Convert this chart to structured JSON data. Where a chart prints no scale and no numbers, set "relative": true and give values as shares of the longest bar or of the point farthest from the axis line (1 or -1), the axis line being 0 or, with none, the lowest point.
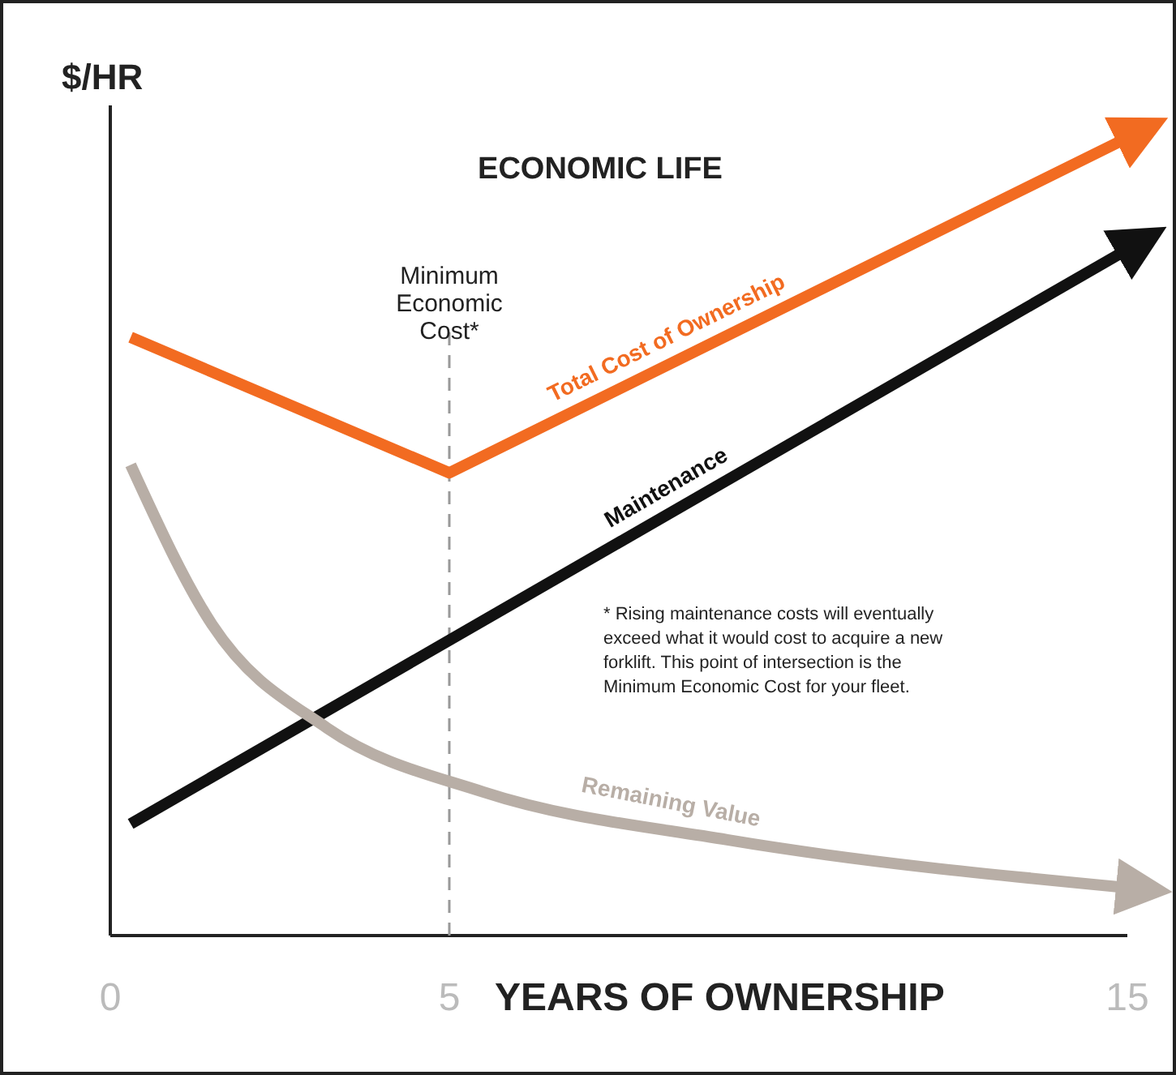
{
  "chart_data": {
    "type": "line",
    "relative": true,
    "title": "ECONOMIC LIFE",
    "ylabel": "$/HR",
    "xlabel": "YEARS OF OWNERSHIP",
    "xlim": [
      0,
      15
    ],
    "xticks": [
      0,
      5,
      15
    ],
    "marker": "none",
    "line_style": "solid",
    "grid": false,
    "legend": false,
    "series": [
      {
        "name": "Total Cost of Ownership",
        "color": "#f26b21",
        "x": [
          0.3,
          5,
          15
        ],
        "values": [
          0.75,
          0.58,
          1
        ]
      },
      {
        "name": "Maintenance",
        "color": "#111111",
        "x": [
          0.3,
          15
        ],
        "values": [
          0.14,
          0.86
        ]
      },
      {
        "name": "Remaining Value",
        "color": "#b8aea6",
        "x": [
          0.3,
          1.5,
          3.2,
          5.5,
          9.1,
          15
        ],
        "values": [
          0.59,
          0.39,
          0.26,
          0.18,
          0.12,
          0.06
        ]
      }
    ],
    "ref_lines": [
      {
        "axis": "x",
        "value": 5,
        "label": "Minimum Economic Cost*",
        "color": "#999999",
        "line_style": "dashed"
      }
    ],
    "annotations": [
      "* Rising maintenance costs will eventually exceed what it would cost to acquire a new forklift. This point of intersection is the Minimum Economic Cost for your fleet."
    ]
  }
}
